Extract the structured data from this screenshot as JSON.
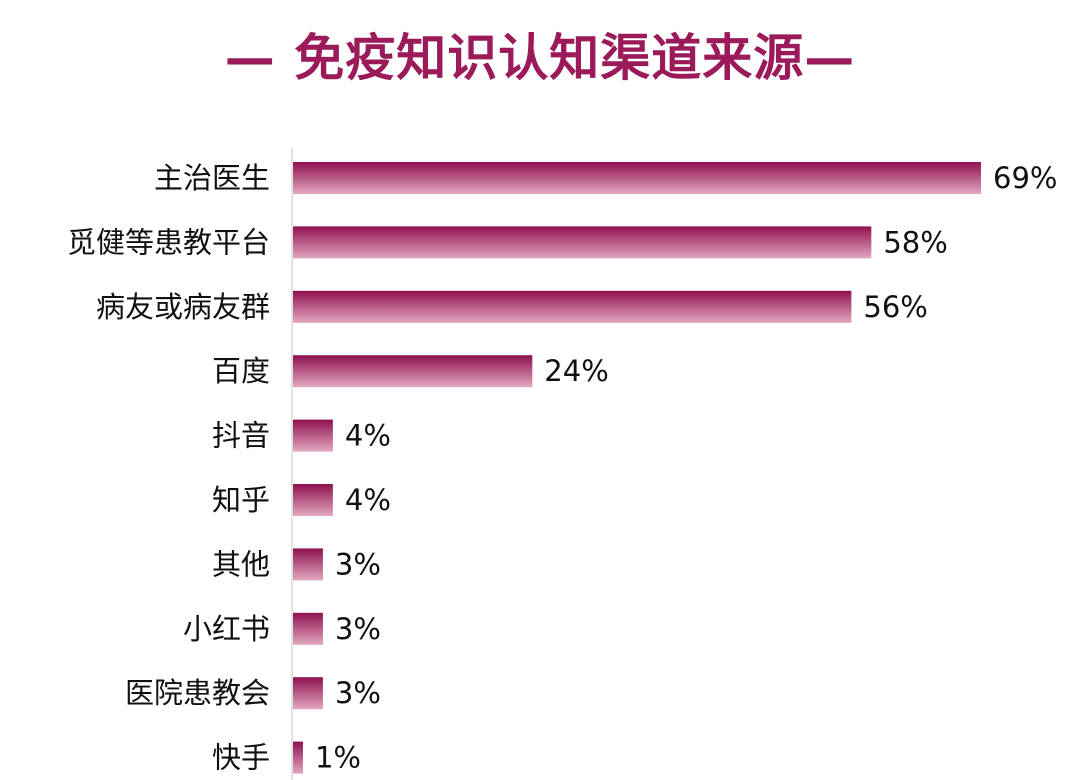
{
  "chart_data": {
    "type": "bar",
    "orientation": "horizontal",
    "title": "— 免疫知识认知渠道来源—",
    "categories": [
      "主治医生",
      "觅健等患教平台",
      "病友或病友群",
      "百度",
      "抖音",
      "知乎",
      "其他",
      "小红书",
      "医院患教会",
      "快手"
    ],
    "values": [
      69,
      58,
      56,
      24,
      4,
      4,
      3,
      3,
      3,
      1
    ],
    "value_labels": [
      "69%",
      "58%",
      "56%",
      "24%",
      "4%",
      "4%",
      "3%",
      "3%",
      "3%",
      "1%"
    ],
    "xlabel": "",
    "ylabel": "",
    "xlim": [
      0,
      69
    ],
    "grid": false,
    "legend": "none"
  },
  "colors": {
    "title": "#9a1a5a",
    "bar_top": "#8e1150",
    "bar_bottom": "#e2a7bf",
    "axis": "#d9d9d9",
    "text": "#111111"
  }
}
